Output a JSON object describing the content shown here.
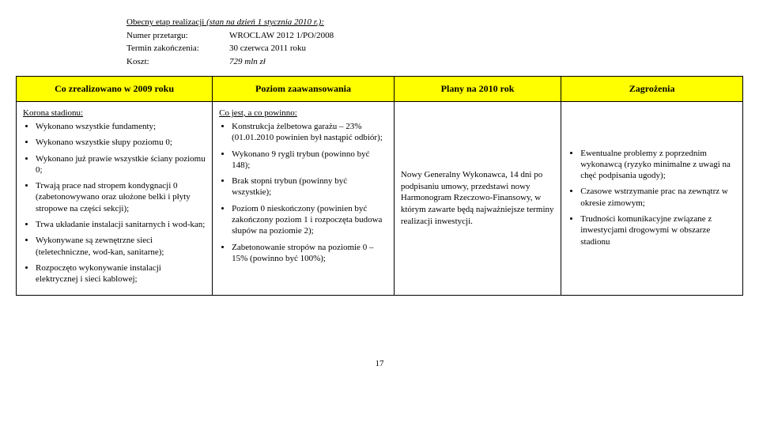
{
  "meta": {
    "title": "Obecny etap realizacji ",
    "title_italic": "(stan na dzień 1 stycznia 2010 r.):",
    "rows": [
      {
        "label": "Numer przetargu:",
        "value": "WROCLAW 2012 1/PO/2008"
      },
      {
        "label": "Termin zakończenia:",
        "value": "30 czerwca 2011 roku"
      },
      {
        "label": "Koszt:",
        "value": "729 mln zł",
        "italic": true
      }
    ]
  },
  "headers": {
    "c1": "Co zrealizowano w 2009 roku",
    "c2": "Poziom zaawansowania",
    "c3": "Plany na 2010 rok",
    "c4": "Zagrożenia"
  },
  "col1": {
    "lead": "Korona stadionu:",
    "items": [
      "Wykonano wszystkie fundamenty;",
      "Wykonano wszystkie słupy poziomu 0;",
      "Wykonano już prawie wszystkie ściany poziomu 0;",
      "Trwają prace nad stropem kondygnacji 0 (zabetonowywano oraz ułożone belki i płyty stropowe na części sekcji);",
      "Trwa układanie instalacji sanitarnych i wod-kan;",
      "Wykonywane są zewnętrzne sieci (teletechniczne, wod-kan, sanitarne);",
      "Rozpoczęto wykonywanie instalacji elektrycznej i sieci kablowej;"
    ]
  },
  "col2": {
    "lead": "Co jest, a co powinno:",
    "items": [
      "Konstrukcja żelbetowa garażu – 23% (01.01.2010 powinien był nastąpić odbiór);",
      "Wykonano 9 rygli trybun (powinno być 148);",
      "Brak stopni trybun (powinny być wszystkie);",
      "Poziom 0 nieskończony (powinien być zakończony poziom 1 i rozpoczęta budowa słupów na poziomie 2);",
      "Zabetonowanie stropów na poziomie 0 – 15% (powinno być 100%);"
    ]
  },
  "col3": {
    "text": "Nowy Generalny Wykonawca, 14 dni po podpisaniu umowy, przedstawi nowy Harmonogram Rzeczowo-Finansowy, w którym zawarte będą najważniejsze terminy realizacji inwestycji."
  },
  "col4": {
    "items": [
      "Ewentualne problemy z poprzednim wykonawcą (ryzyko minimalne z uwagi na chęć podpisania ugody);",
      "Czasowe wstrzymanie prac na zewnątrz w okresie zimowym;",
      "Trudności komunikacyjne związane z inwestycjami drogowymi w obszarze stadionu"
    ]
  },
  "pagenum": "17"
}
